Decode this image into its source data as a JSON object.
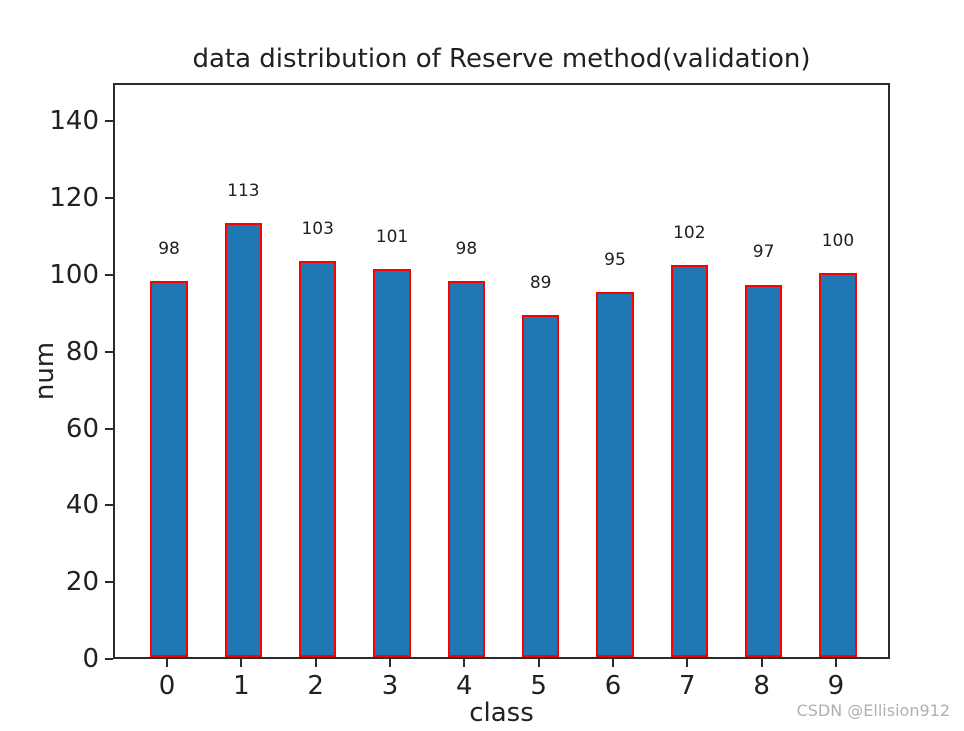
{
  "watermark": {
    "text": "CSDN @Ellision912",
    "color": "#b0b0b0"
  },
  "chart_data": {
    "type": "bar",
    "title": "data distribution of Reserve method(validation)",
    "xlabel": "class",
    "ylabel": "num",
    "categories": [
      "0",
      "1",
      "2",
      "3",
      "4",
      "5",
      "6",
      "7",
      "8",
      "9"
    ],
    "values": [
      98,
      113,
      103,
      101,
      98,
      89,
      95,
      102,
      97,
      100
    ],
    "bar_value_labels": [
      "98",
      "113",
      "103",
      "101",
      "98",
      "89",
      "95",
      "102",
      "97",
      "100"
    ],
    "yticks": [
      0,
      20,
      40,
      60,
      80,
      100,
      120,
      140
    ],
    "ylim": [
      0,
      150
    ],
    "xlim": [
      -0.727,
      9.727
    ],
    "bar_width_units": 0.5,
    "value_label_offset_units": 6,
    "bar_color": "#1f77b4",
    "bar_edge_color": "#ff0000",
    "axis_color": "#2b2b2b",
    "text_color": "#212121",
    "grid": false,
    "legend": null
  }
}
